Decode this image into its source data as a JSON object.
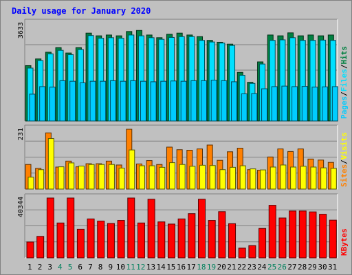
{
  "chart_data": {
    "type": "bar",
    "title": "Daily usage for January 2020",
    "categories": [
      "1",
      "2",
      "3",
      "4",
      "5",
      "6",
      "7",
      "8",
      "9",
      "10",
      "11",
      "12",
      "13",
      "14",
      "15",
      "16",
      "17",
      "18",
      "19",
      "20",
      "21",
      "22",
      "23",
      "24",
      "25",
      "26",
      "27",
      "28",
      "29",
      "30",
      "31"
    ],
    "weekend_days": [
      "4",
      "5",
      "11",
      "12",
      "18",
      "19",
      "25",
      "26"
    ],
    "panels": [
      {
        "id": "hits-files-pages",
        "ylabel_max": "3633",
        "ymax": 3633,
        "legend": [
          {
            "label": "Pages",
            "color": "#00ccff"
          },
          {
            "label": "Files",
            "color": "#00e0ff"
          },
          {
            "label": "Hits",
            "color": "#008040"
          }
        ],
        "series": [
          {
            "name": "Hits",
            "color": "#008040",
            "values": [
              2060,
              2310,
              2560,
              2730,
              2530,
              2730,
              3270,
              3170,
              3200,
              3170,
              3330,
              3370,
              3200,
              3100,
              3230,
              3270,
              3200,
              3140,
              3000,
              2930,
              2860,
              1810,
              1440,
              2200,
              3200,
              3170,
              3280,
              3170,
              3200,
              3170,
              3200
            ]
          },
          {
            "name": "Files",
            "color": "#00e0ff",
            "values": [
              1970,
              2250,
              2500,
              2630,
              2470,
              2660,
              3180,
              3080,
              3100,
              3080,
              3200,
              3170,
              3100,
              3040,
              3110,
              3140,
              3140,
              3000,
              2940,
              2900,
              2810,
              1700,
              1400,
              2120,
              3000,
              3020,
              3100,
              3000,
              3000,
              3010,
              3000
            ]
          },
          {
            "name": "Pages",
            "color": "#00ccff",
            "values": [
              1000,
              1280,
              1260,
              1500,
              1480,
              1420,
              1480,
              1480,
              1500,
              1480,
              1500,
              1480,
              1460,
              1480,
              1490,
              1480,
              1500,
              1500,
              1520,
              1500,
              1460,
              1010,
              1020,
              1200,
              1280,
              1300,
              1280,
              1290,
              1260,
              1270,
              1280
            ]
          }
        ]
      },
      {
        "id": "visits-sites",
        "ylabel_max": "231",
        "ymax": 231,
        "legend": [
          {
            "label": "Sites",
            "color": "#ff8000"
          },
          {
            "label": "Visits",
            "color": "#ffff00"
          }
        ],
        "series": [
          {
            "name": "Sites",
            "color": "#ff8000",
            "values": [
              95,
              80,
              217,
              85,
              108,
              86,
              98,
              98,
              108,
              93,
              231,
              97,
              110,
              95,
              162,
              152,
              150,
              155,
              170,
              111,
              144,
              158,
              75,
              73,
              124,
              155,
              145,
              155,
              116,
              112,
              103
            ]
          },
          {
            "name": "Visits",
            "color": "#ffff00",
            "values": [
              46,
              75,
              195,
              86,
              101,
              89,
              95,
              95,
              95,
              81,
              151,
              90,
              90,
              84,
              102,
              95,
              88,
              92,
              91,
              75,
              84,
              90,
              78,
              74,
              85,
              93,
              85,
              88,
              85,
              82,
              80
            ]
          }
        ]
      },
      {
        "id": "kbytes",
        "ylabel_max": "40344",
        "ymax": 40344,
        "legend": [
          {
            "label": "KBytes",
            "color": "#ff0000"
          }
        ],
        "series": [
          {
            "name": "KBytes",
            "color": "#ff0000",
            "values": [
              10680,
              14460,
              40344,
              23510,
              40344,
              19290,
              26240,
              24790,
              23180,
              25240,
              40344,
              23510,
              39530,
              24240,
              22770,
              26240,
              29810,
              39530,
              25240,
              31160,
              23040,
              6540,
              8240,
              19830,
              35430,
              26880,
              31590,
              31590,
              30990,
              29400,
              25420
            ]
          }
        ]
      }
    ]
  }
}
